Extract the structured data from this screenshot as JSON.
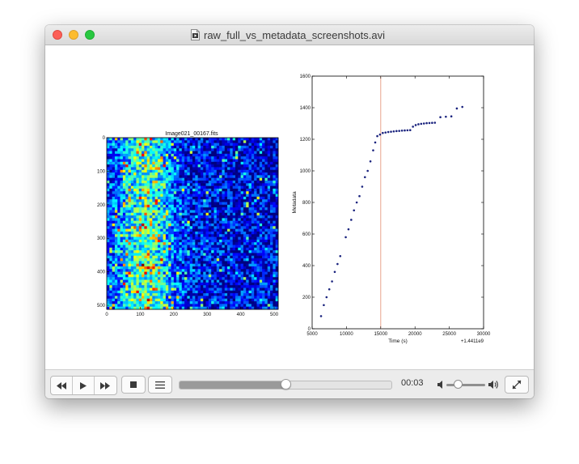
{
  "window": {
    "title": "raw_full_vs_metadata_screenshots.avi"
  },
  "player": {
    "time": "00:03",
    "progress_fraction": 0.5,
    "volume_fraction": 0.3
  },
  "icons": {
    "rewind": "rewind-icon",
    "play": "play-icon",
    "fast_forward": "fast-forward-icon",
    "stop": "stop-icon",
    "playlist": "playlist-icon",
    "volume_low": "volume-low-icon",
    "volume_high": "volume-high-icon",
    "fullscreen": "fullscreen-icon"
  },
  "colors": {
    "close": "#fc5f57",
    "minimize": "#fdbc2e",
    "maximize": "#28c840",
    "marker": "#1a237e",
    "vline": "#e8a38c"
  },
  "chart_data": [
    {
      "type": "heatmap",
      "title": "Image021_00167.fits",
      "xticks": [
        "0",
        "100",
        "200",
        "300",
        "400",
        "500"
      ],
      "yticks": [
        "0",
        "100",
        "200",
        "300",
        "400",
        "500"
      ],
      "xlim": [
        0,
        512
      ],
      "ylim": [
        0,
        512
      ],
      "colormap": "jet"
    },
    {
      "type": "scatter",
      "xlabel": "Time (s)",
      "ylabel": "Metadata",
      "xlim": [
        5000,
        30000
      ],
      "ylim": [
        0,
        1600
      ],
      "xticks": [
        "5000",
        "10000",
        "15000",
        "20000",
        "25000",
        "30000"
      ],
      "yticks": [
        "0",
        "200",
        "400",
        "600",
        "800",
        "1000",
        "1200",
        "1400",
        "1600"
      ],
      "offset_text": "+1.4411e9",
      "vline_x": 15000,
      "points": [
        [
          6300,
          80
        ],
        [
          6700,
          150
        ],
        [
          7100,
          200
        ],
        [
          7500,
          250
        ],
        [
          7900,
          300
        ],
        [
          8300,
          360
        ],
        [
          8700,
          410
        ],
        [
          9100,
          460
        ],
        [
          9900,
          580
        ],
        [
          10300,
          630
        ],
        [
          10700,
          690
        ],
        [
          11100,
          750
        ],
        [
          11500,
          800
        ],
        [
          11900,
          840
        ],
        [
          12300,
          900
        ],
        [
          12700,
          960
        ],
        [
          13100,
          1000
        ],
        [
          13500,
          1060
        ],
        [
          13900,
          1130
        ],
        [
          14200,
          1180
        ],
        [
          14500,
          1220
        ],
        [
          14900,
          1230
        ],
        [
          15300,
          1240
        ],
        [
          15700,
          1243
        ],
        [
          16100,
          1246
        ],
        [
          16500,
          1248
        ],
        [
          16900,
          1250
        ],
        [
          17300,
          1252
        ],
        [
          17700,
          1253
        ],
        [
          18100,
          1255
        ],
        [
          18500,
          1256
        ],
        [
          18900,
          1257
        ],
        [
          19300,
          1258
        ],
        [
          19700,
          1280
        ],
        [
          20100,
          1290
        ],
        [
          20500,
          1295
        ],
        [
          20900,
          1298
        ],
        [
          21300,
          1300
        ],
        [
          21700,
          1302
        ],
        [
          22100,
          1303
        ],
        [
          22500,
          1304
        ],
        [
          22900,
          1305
        ],
        [
          23700,
          1340
        ],
        [
          24500,
          1343
        ],
        [
          25300,
          1345
        ],
        [
          26100,
          1395
        ],
        [
          26900,
          1405
        ]
      ]
    }
  ]
}
